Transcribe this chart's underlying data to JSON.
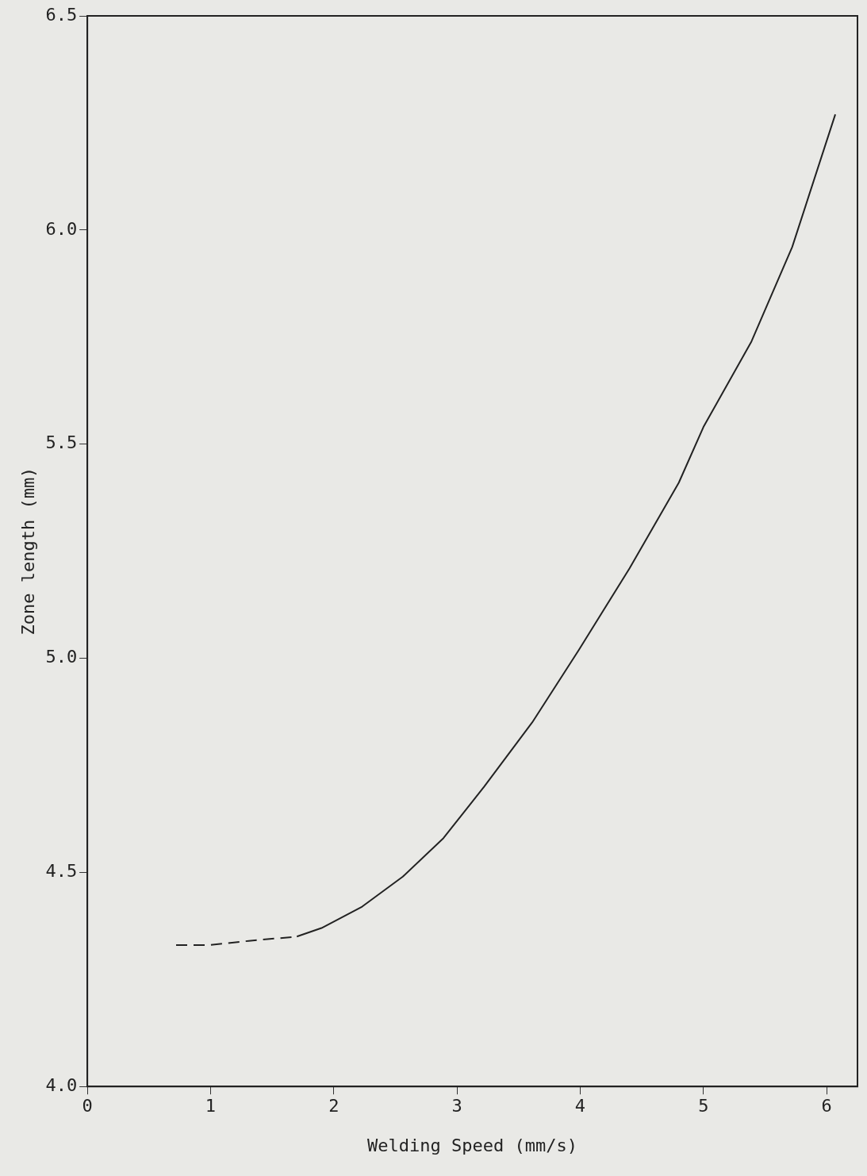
{
  "chart_data": {
    "type": "line",
    "xlabel": "Welding Speed (mm/s)",
    "ylabel": "Zone length (mm)",
    "xlim": [
      0,
      6.25
    ],
    "xticks": [
      0,
      1,
      2,
      3,
      4,
      5,
      6
    ],
    "ylim": [
      4.0,
      6.5
    ],
    "yticks": [
      {
        "value": 4,
        "label": "4.0"
      },
      4.5,
      {
        "value": 5,
        "label": "5.0"
      },
      5.5,
      {
        "value": 6,
        "label": "6.0"
      },
      6.5
    ],
    "grid": false,
    "legend": false,
    "marker": "none",
    "series": [
      {
        "color": "#222222",
        "line_style": "dashed",
        "x": [
          0.72,
          0.98,
          1.31,
          1.7
        ],
        "values": [
          4.33,
          4.33,
          4.34,
          4.35
        ]
      },
      {
        "color": "#222222",
        "line_style": "solid",
        "x": [
          1.7,
          1.9,
          2.23,
          2.56,
          2.89,
          3.22,
          3.61,
          3.99,
          4.4,
          4.8,
          5.0,
          5.39,
          5.72,
          6.07
        ],
        "values": [
          4.35,
          4.37,
          4.42,
          4.49,
          4.58,
          4.7,
          4.85,
          5.02,
          5.21,
          5.41,
          5.54,
          5.74,
          5.96,
          6.27
        ]
      }
    ]
  }
}
